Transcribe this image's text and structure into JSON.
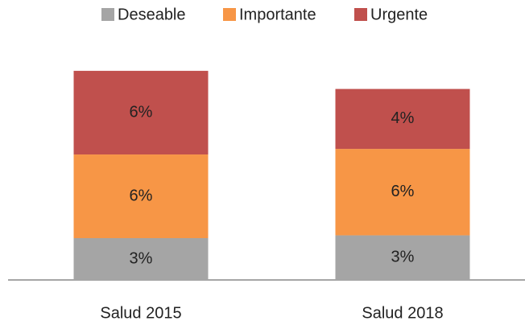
{
  "chart_data": {
    "type": "stacked_bar",
    "categories": [
      "Salud 2015",
      "Salud 2018"
    ],
    "series": [
      {
        "name": "Deseable",
        "color": "#a5a5a5",
        "values": [
          3,
          3.2
        ],
        "value_labels": [
          "3%",
          "3%"
        ]
      },
      {
        "name": "Importante",
        "color": "#f79646",
        "values": [
          6,
          6.2
        ],
        "value_labels": [
          "6%",
          "6%"
        ]
      },
      {
        "name": "Urgente",
        "color": "#c0504d",
        "values": [
          6,
          4.3
        ],
        "value_labels": [
          "6%",
          "4%"
        ]
      }
    ],
    "legend": "top"
  }
}
